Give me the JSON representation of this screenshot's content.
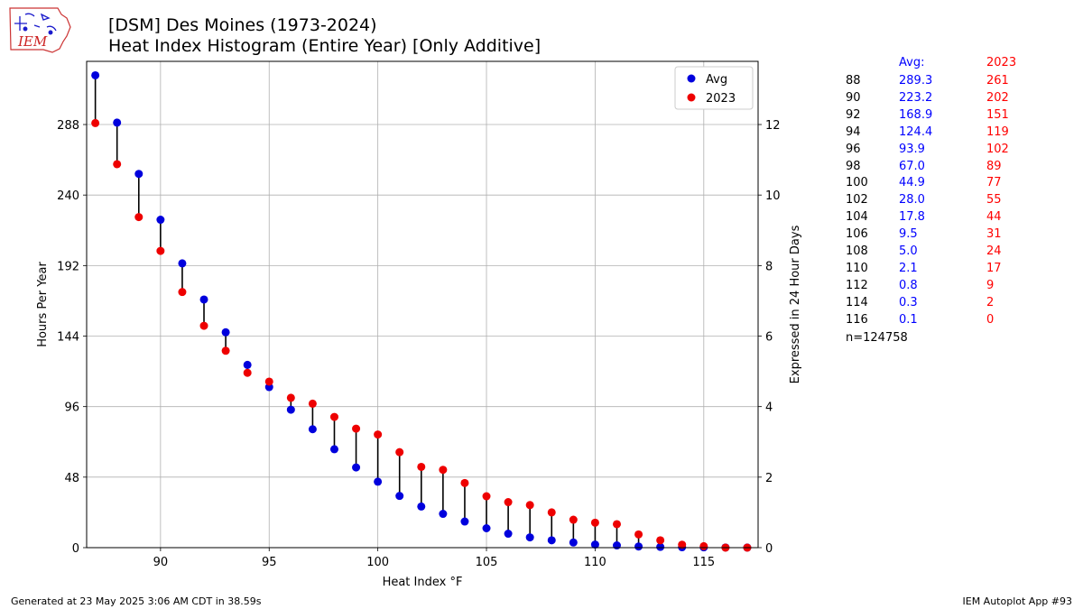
{
  "header": {
    "title_line1": "[DSM] Des Moines (1973-2024)",
    "title_line2": "Heat Index Histogram (Entire Year) [Only Additive]",
    "logo_text": "IEM"
  },
  "colors": {
    "avg": "#0000dd",
    "year": "#ee0000",
    "stem": "#000000",
    "grid": "#b0b0b0"
  },
  "chart_data": {
    "type": "scatter",
    "x": [
      87,
      88,
      89,
      90,
      91,
      92,
      93,
      94,
      95,
      96,
      97,
      98,
      99,
      100,
      101,
      102,
      103,
      104,
      105,
      106,
      107,
      108,
      109,
      110,
      111,
      112,
      113,
      114,
      115,
      116,
      117
    ],
    "series": [
      {
        "name": "Avg",
        "values": [
          321.5,
          289.3,
          254.4,
          223.2,
          193.5,
          168.9,
          146.6,
          124.4,
          109.3,
          93.9,
          80.6,
          67.0,
          54.6,
          44.9,
          35.2,
          28.0,
          23.0,
          17.8,
          13.2,
          9.5,
          7.0,
          5.0,
          3.5,
          2.1,
          1.5,
          0.8,
          0.5,
          0.3,
          0.2,
          0.1,
          0.05
        ]
      },
      {
        "name": "2023",
        "values": [
          289,
          261,
          225,
          202,
          174,
          151,
          134,
          119,
          113,
          102,
          98,
          89,
          81,
          77,
          65,
          55,
          53,
          44,
          35,
          31,
          29,
          24,
          19,
          17,
          16,
          9,
          5,
          2,
          1,
          0,
          0
        ]
      }
    ],
    "xlabel": "Heat Index $^\\circ$F",
    "ylabel": "Hours Per Year",
    "ylabel_right": "Expressed in 24 Hour Days",
    "xlim": [
      86.6,
      117.5
    ],
    "ylim": [
      0,
      331
    ],
    "xticks": [
      90,
      95,
      100,
      105,
      110,
      115
    ],
    "xtick_labels": [
      "90",
      "95",
      "100",
      "105",
      "110",
      "115"
    ],
    "yticks": [
      0,
      48,
      96,
      144,
      192,
      240,
      288
    ],
    "ytick_labels": [
      "0",
      "48",
      "96",
      "144",
      "192",
      "240",
      "288"
    ],
    "yticks_right": [
      0,
      2,
      4,
      6,
      8,
      10,
      12
    ],
    "ytick_right_labels": [
      "0",
      "2",
      "4",
      "6",
      "8",
      "10",
      "12"
    ],
    "grid": true,
    "legend": "top-right"
  },
  "table": {
    "header_avg": "Avg:",
    "header_year": "2023",
    "rows": [
      {
        "temp": "88",
        "avg": "289.3",
        "year": "261"
      },
      {
        "temp": "90",
        "avg": "223.2",
        "year": "202"
      },
      {
        "temp": "92",
        "avg": "168.9",
        "year": "151"
      },
      {
        "temp": "94",
        "avg": "124.4",
        "year": "119"
      },
      {
        "temp": "96",
        "avg": "93.9",
        "year": "102"
      },
      {
        "temp": "98",
        "avg": "67.0",
        "year": "89"
      },
      {
        "temp": "100",
        "avg": "44.9",
        "year": "77"
      },
      {
        "temp": "102",
        "avg": "28.0",
        "year": "55"
      },
      {
        "temp": "104",
        "avg": "17.8",
        "year": "44"
      },
      {
        "temp": "106",
        "avg": "9.5",
        "year": "31"
      },
      {
        "temp": "108",
        "avg": "5.0",
        "year": "24"
      },
      {
        "temp": "110",
        "avg": "2.1",
        "year": "17"
      },
      {
        "temp": "112",
        "avg": "0.8",
        "year": "9"
      },
      {
        "temp": "114",
        "avg": "0.3",
        "year": "2"
      },
      {
        "temp": "116",
        "avg": "0.1",
        "year": "0"
      }
    ],
    "footer": "n=124758"
  },
  "footer": {
    "left": "Generated at 23 May 2025 3:06 AM CDT in 38.59s",
    "right": "IEM Autoplot App #93"
  }
}
